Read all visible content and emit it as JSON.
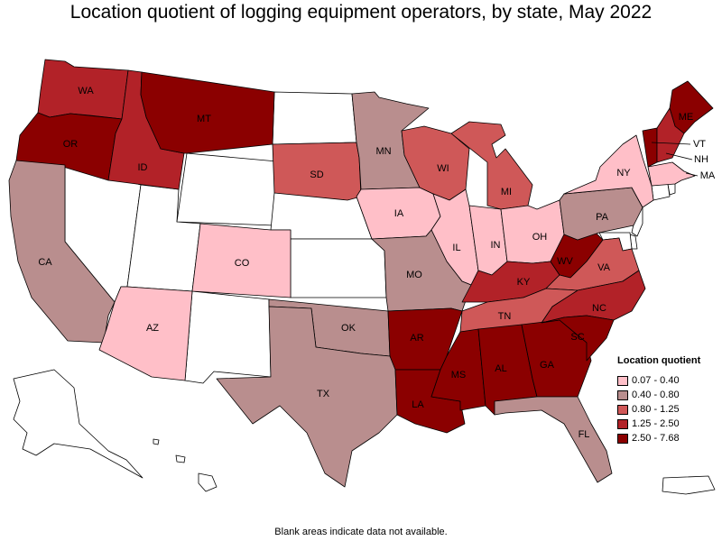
{
  "title": "Location quotient of logging equipment operators, by state, May 2022",
  "footnote": "Blank areas indicate data not available.",
  "colors": {
    "none": "#ffffff",
    "c1": "#ffbfc8",
    "c2": "#b98e8e",
    "c3": "#cf5858",
    "c4": "#b22228",
    "c5": "#8b0000"
  },
  "legend": {
    "title": "Location quotient",
    "items": [
      {
        "label": "0.07 - 0.40",
        "color": "#ffbfc8"
      },
      {
        "label": "0.40 - 0.80",
        "color": "#b98e8e"
      },
      {
        "label": "0.80 - 1.25",
        "color": "#cf5858"
      },
      {
        "label": "1.25 - 2.50",
        "color": "#b22228"
      },
      {
        "label": "2.50 - 7.68",
        "color": "#8b0000"
      }
    ]
  },
  "states": {
    "WA": "WA",
    "OR": "OR",
    "ID": "ID",
    "MT": "MT",
    "CA": "CA",
    "AZ": "AZ",
    "CO": "CO",
    "SD": "SD",
    "MN": "MN",
    "IA": "IA",
    "WI": "WI",
    "IL": "IL",
    "MI": "MI",
    "IN": "IN",
    "OH": "OH",
    "MO": "MO",
    "KY": "KY",
    "WV": "WV",
    "PA": "PA",
    "NY": "NY",
    "VA": "VA",
    "NC": "NC",
    "TN": "TN",
    "OK": "OK",
    "AR": "AR",
    "TX": "TX",
    "LA": "LA",
    "MS": "MS",
    "AL": "AL",
    "GA": "GA",
    "SC": "SC",
    "FL": "FL",
    "ME": "ME",
    "VT": "VT",
    "NH": "NH",
    "MA": "MA"
  }
}
